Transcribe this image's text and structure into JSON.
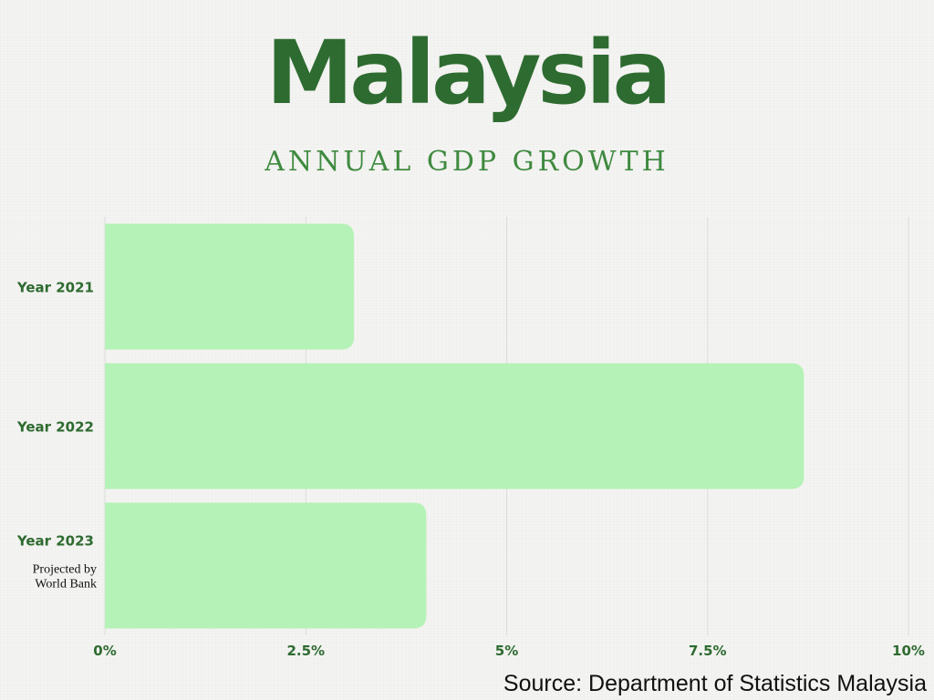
{
  "title": "Malaysia",
  "subtitle": "ANNUAL GDP GROWTH",
  "source": "Source: Department of Statistics Malaysia",
  "colors": {
    "bar": "#b5f2b7",
    "text": "#2e6b30",
    "grid": "#dcdcdc"
  },
  "chart_data": {
    "type": "bar",
    "orientation": "horizontal",
    "categories": [
      "Year 2021",
      "Year 2022",
      "Year 2023"
    ],
    "category_notes": [
      "",
      "",
      "Projected by World Bank"
    ],
    "values": [
      3.1,
      8.7,
      4.0
    ],
    "xlim": [
      0,
      10
    ],
    "ticks": [
      0,
      2.5,
      5,
      7.5,
      10
    ],
    "tick_labels": [
      "0%",
      "2.5%",
      "5%",
      "7.5%",
      "10%"
    ],
    "grid": true
  }
}
